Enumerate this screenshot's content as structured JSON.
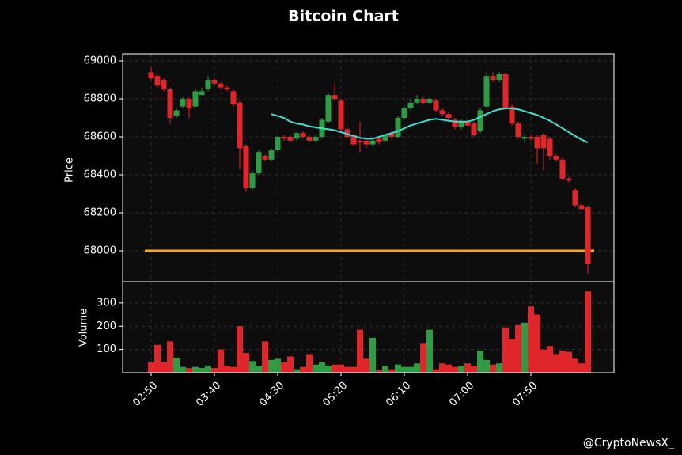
{
  "chart_data": [
    {
      "type": "candlestick",
      "title": "Bitcoin Chart",
      "y_label": "Price",
      "watermark": "@CryptoNewsX_",
      "up_color": "#2e9b45",
      "down_color": "#e0262b",
      "open": [
        68940,
        68920,
        68900,
        68850,
        68710,
        68760,
        68800,
        68760,
        68820,
        68850,
        68900,
        68880,
        68860,
        68840,
        68780,
        68550,
        68330,
        68410,
        68500,
        68480,
        68530,
        68600,
        68600,
        68590,
        68620,
        68600,
        68580,
        68600,
        68680,
        68820,
        68790,
        68640,
        68610,
        68580,
        68580,
        68560,
        68590,
        68580,
        68620,
        68600,
        68700,
        68750,
        68780,
        68800,
        68780,
        68790,
        68740,
        68720,
        68690,
        68650,
        68680,
        68670,
        68630,
        68760,
        68920,
        68900,
        68930,
        68760,
        68670,
        68590,
        68600,
        68600,
        68610,
        68590,
        68500,
        68480,
        68380,
        68320,
        68240,
        68230
      ],
      "high": [
        68970,
        68930,
        68910,
        68860,
        68750,
        68810,
        68810,
        68850,
        68860,
        68920,
        68910,
        68890,
        68870,
        68850,
        68790,
        68560,
        68420,
        68530,
        68510,
        68540,
        68610,
        68610,
        68610,
        68630,
        68630,
        68610,
        68610,
        68700,
        68830,
        68880,
        68800,
        68650,
        68620,
        68680,
        68590,
        68590,
        68600,
        68620,
        68630,
        68710,
        68760,
        68800,
        68820,
        68810,
        68810,
        68800,
        68750,
        68730,
        68700,
        68690,
        68690,
        68680,
        68750,
        68940,
        68940,
        68940,
        68940,
        68770,
        68680,
        68610,
        68610,
        68610,
        68620,
        68600,
        68510,
        68490,
        68390,
        68330,
        68250,
        68240
      ],
      "low": [
        68900,
        68860,
        68840,
        68670,
        68700,
        68750,
        68700,
        68750,
        68820,
        68840,
        68870,
        68850,
        68840,
        68760,
        68430,
        68310,
        68320,
        68400,
        68470,
        68470,
        68520,
        68580,
        68570,
        68580,
        68590,
        68570,
        68570,
        68590,
        68670,
        68790,
        68630,
        68590,
        68550,
        68520,
        68540,
        68550,
        68560,
        68570,
        68590,
        68590,
        68690,
        68740,
        68770,
        68770,
        68770,
        68730,
        68710,
        68690,
        68640,
        68640,
        68650,
        68600,
        68620,
        68750,
        68890,
        68890,
        68740,
        68660,
        68590,
        68570,
        68580,
        68460,
        68420,
        68480,
        68470,
        68370,
        68360,
        68230,
        68210,
        67880
      ],
      "close": [
        68910,
        68870,
        68850,
        68700,
        68740,
        68800,
        68750,
        68840,
        68840,
        68900,
        68880,
        68860,
        68850,
        68770,
        68540,
        68330,
        68410,
        68520,
        68480,
        68530,
        68600,
        68590,
        68580,
        68620,
        68600,
        68580,
        68600,
        68690,
        68820,
        68800,
        68640,
        68600,
        68560,
        68570,
        68560,
        68580,
        68570,
        68610,
        68600,
        68700,
        68750,
        68780,
        68800,
        68780,
        68800,
        68740,
        68720,
        68700,
        68650,
        68680,
        68660,
        68610,
        68740,
        68920,
        68900,
        68930,
        68750,
        68670,
        68600,
        68600,
        68590,
        68540,
        68540,
        68500,
        68480,
        68380,
        68370,
        68240,
        68220,
        67930
      ],
      "moving_average": {
        "color": "#40e0d0",
        "values": [
          null,
          null,
          null,
          null,
          null,
          null,
          null,
          null,
          null,
          null,
          null,
          null,
          null,
          null,
          null,
          null,
          null,
          null,
          null,
          68720,
          68710,
          68700,
          68680,
          68670,
          68665,
          68655,
          68650,
          68645,
          68640,
          68635,
          68625,
          68615,
          68605,
          68595,
          68590,
          68590,
          68600,
          68610,
          68620,
          68630,
          68645,
          68660,
          68670,
          68680,
          68690,
          68695,
          68690,
          68685,
          68680,
          68680,
          68680,
          68690,
          68705,
          68720,
          68735,
          68745,
          68750,
          68750,
          68745,
          68735,
          68725,
          68715,
          68700,
          68685,
          68665,
          68645,
          68625,
          68605,
          68585,
          68570
        ]
      },
      "hline": {
        "value": 68000,
        "color": "#f5a623"
      },
      "xlim": [
        -4.5,
        73.125
      ],
      "ylim": [
        67837.5,
        69037.5
      ],
      "yticks": [
        68000,
        68200,
        68400,
        68600,
        68800,
        69000
      ],
      "grid": true
    },
    {
      "type": "bar",
      "y_label": "Volume",
      "values": [
        45,
        120,
        45,
        135,
        65,
        25,
        20,
        25,
        20,
        30,
        20,
        100,
        30,
        25,
        200,
        85,
        50,
        30,
        135,
        55,
        60,
        45,
        70,
        15,
        25,
        80,
        35,
        45,
        30,
        35,
        35,
        25,
        25,
        185,
        60,
        150,
        10,
        30,
        15,
        35,
        25,
        25,
        40,
        125,
        185,
        15,
        40,
        35,
        25,
        30,
        40,
        30,
        95,
        55,
        35,
        40,
        195,
        145,
        205,
        215,
        285,
        250,
        100,
        115,
        80,
        95,
        90,
        60,
        40,
        350
      ],
      "xlim": [
        -4.5,
        73.125
      ],
      "ylim": [
        0,
        391.5
      ],
      "yticks": [
        100,
        200,
        300
      ],
      "grid": true,
      "xticks": [
        {
          "value": 0,
          "label": "02:50"
        },
        {
          "value": 10,
          "label": "03:40"
        },
        {
          "value": 20,
          "label": "04:30"
        },
        {
          "value": 30,
          "label": "05:20"
        },
        {
          "value": 40,
          "label": "06:10"
        },
        {
          "value": 50,
          "label": "07:00"
        },
        {
          "value": 60,
          "label": "07:50"
        }
      ]
    }
  ]
}
